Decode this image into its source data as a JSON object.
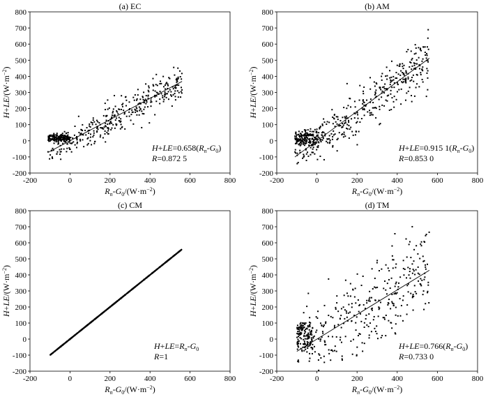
{
  "chart_data": [
    {
      "type": "scatter",
      "title": "(a) EC",
      "xlabel": "Rn-G0/(W·m-2)",
      "ylabel": "H+LE/(W·m-2)",
      "xlim": [
        -200,
        800
      ],
      "ylim": [
        -200,
        800
      ],
      "xticks": [
        -200,
        0,
        200,
        400,
        600,
        800
      ],
      "yticks": [
        -200,
        -100,
        0,
        100,
        200,
        300,
        400,
        500,
        600,
        700,
        800
      ],
      "x_range": [
        -110,
        560
      ],
      "fit": {
        "slope": 0.658,
        "intercept": 0
      },
      "annotations": [
        "H+LE=0.658(Rn-G0)",
        "R=0.872 5"
      ],
      "seed": 11,
      "n_points": 520,
      "cluster": [
        -110,
        0,
        10,
        25
      ],
      "noise": 70,
      "noise_hi": 75
    },
    {
      "type": "scatter",
      "title": "(b) AM",
      "xlabel": "Rn-G0/(W·m-2)",
      "ylabel": "H+LE/(W·m-2)",
      "xlim": [
        -200,
        800
      ],
      "ylim": [
        -200,
        800
      ],
      "xticks": [
        -200,
        0,
        200,
        400,
        600,
        800
      ],
      "yticks": [
        -200,
        -100,
        0,
        100,
        200,
        300,
        400,
        500,
        600,
        700,
        800
      ],
      "x_range": [
        -110,
        560
      ],
      "fit": {
        "slope": 0.9151,
        "intercept": 0
      },
      "annotations": [
        "H+LE=0.915 1(Rn-G0)",
        "R=0.853 0"
      ],
      "seed": 23,
      "n_points": 560,
      "cluster": [
        -110,
        10,
        -20,
        50
      ],
      "noise": 95,
      "noise_hi": 110
    },
    {
      "type": "scatter",
      "title": "(c) CM",
      "xlabel": "Rn-G0/(W·m-2)",
      "ylabel": "H+LE/(W·m-2)",
      "xlim": [
        -200,
        800
      ],
      "ylim": [
        -200,
        800
      ],
      "xticks": [
        -200,
        0,
        200,
        400,
        600,
        800
      ],
      "yticks": [
        -200,
        -100,
        0,
        100,
        200,
        300,
        400,
        500,
        600,
        700,
        800
      ],
      "x_range": [
        -100,
        560
      ],
      "fit": {
        "slope": 1,
        "intercept": 0
      },
      "annotations": [
        "H+LE=Rn-G0",
        "R=1"
      ],
      "seed": 5,
      "n_points": 400,
      "cluster": [
        -100,
        0,
        -100,
        0
      ],
      "noise": 0,
      "noise_hi": 0
    },
    {
      "type": "scatter",
      "title": "(d) TM",
      "xlabel": "Rn-G0/(W·m-2)",
      "ylabel": "H+LE/(W·m-2)",
      "xlim": [
        -200,
        800
      ],
      "ylim": [
        -200,
        800
      ],
      "xticks": [
        -200,
        0,
        200,
        400,
        600,
        800
      ],
      "yticks": [
        -200,
        -100,
        0,
        100,
        200,
        300,
        400,
        500,
        600,
        700,
        800
      ],
      "x_range": [
        -100,
        560
      ],
      "fit": {
        "slope": 0.766,
        "intercept": 0
      },
      "annotations": [
        "H+LE=0.766(Rn-G0)",
        "R=0.733 0"
      ],
      "seed": 37,
      "n_points": 470,
      "cluster": [
        -100,
        -20,
        -60,
        100
      ],
      "noise": 150,
      "noise_hi": 200
    }
  ]
}
